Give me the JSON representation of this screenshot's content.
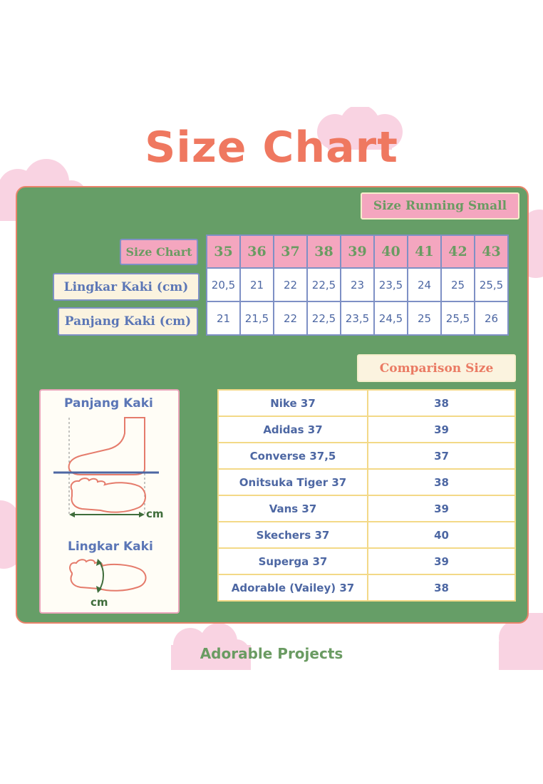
{
  "title": "Size Chart",
  "badge_running": "Size Running Small",
  "size_table": {
    "header_label": "Size Chart",
    "sizes": [
      "35",
      "36",
      "37",
      "38",
      "39",
      "40",
      "41",
      "42",
      "43"
    ],
    "rows": [
      {
        "label": "Lingkar Kaki (cm)",
        "values": [
          "20,5",
          "21",
          "22",
          "22,5",
          "23",
          "23,5",
          "24",
          "25",
          "25,5"
        ]
      },
      {
        "label": "Panjang Kaki (cm)",
        "values": [
          "21",
          "21,5",
          "22",
          "22,5",
          "23,5",
          "24,5",
          "25",
          "25,5",
          "26"
        ]
      }
    ]
  },
  "comparison": {
    "title": "Comparison Size",
    "rows": [
      {
        "brand": "Nike 37",
        "size": "38"
      },
      {
        "brand": "Adidas 37",
        "size": "39"
      },
      {
        "brand": "Converse 37,5",
        "size": "37"
      },
      {
        "brand": "Onitsuka Tiger 37",
        "size": "38"
      },
      {
        "brand": "Vans 37",
        "size": "39"
      },
      {
        "brand": "Skechers 37",
        "size": "40"
      },
      {
        "brand": "Superga 37",
        "size": "39"
      },
      {
        "brand": "Adorable (Vailey) 37",
        "size": "38"
      }
    ]
  },
  "guide": {
    "length_title": "Panjang Kaki",
    "length_unit": "cm",
    "girth_title": "Lingkar Kaki",
    "girth_unit": "cm"
  },
  "footer_brand": "Adorable Projects",
  "colors": {
    "panel_green": "#669e67",
    "title_coral": "#ef7860",
    "pink": "#f4a6bf",
    "blue_text": "#5b76b6"
  },
  "icons": [
    "cloud-icon",
    "foot-side-icon",
    "foot-top-icon",
    "foot-girth-icon"
  ]
}
